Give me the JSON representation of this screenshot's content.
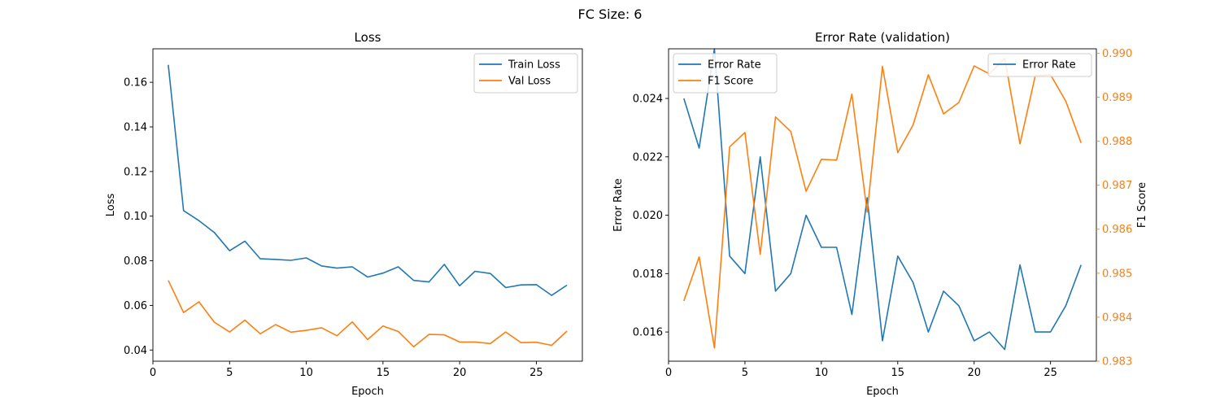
{
  "suptitle": "FC Size: 6",
  "chart_data": [
    {
      "type": "line",
      "title": "Loss",
      "xlabel": "Epoch",
      "ylabel": "Loss",
      "xlim": [
        0,
        28
      ],
      "ylim": [
        0.035,
        0.175
      ],
      "xticks": [
        0,
        5,
        10,
        15,
        20,
        25
      ],
      "yticks": [
        0.04,
        0.06,
        0.08,
        0.1,
        0.12,
        0.14,
        0.16
      ],
      "yticks_decimals": 2,
      "legend": "top-right",
      "grid": false,
      "x": [
        1,
        2,
        3,
        4,
        5,
        6,
        7,
        8,
        9,
        10,
        11,
        12,
        13,
        14,
        15,
        16,
        17,
        18,
        19,
        20,
        21,
        22,
        23,
        24,
        25,
        26,
        27
      ],
      "series": [
        {
          "name": "Train Loss",
          "color": "#1f77b4",
          "values": [
            0.1678,
            0.1025,
            0.098,
            0.0927,
            0.0845,
            0.0888,
            0.0809,
            0.0806,
            0.0802,
            0.0813,
            0.0777,
            0.0767,
            0.0773,
            0.0727,
            0.0745,
            0.0773,
            0.0712,
            0.0705,
            0.0784,
            0.0688,
            0.0753,
            0.0743,
            0.068,
            0.0692,
            0.0693,
            0.0645,
            0.0691
          ]
        },
        {
          "name": "Val Loss",
          "color": "#ff7f0e",
          "values": [
            0.0712,
            0.0568,
            0.0616,
            0.0525,
            0.0481,
            0.0534,
            0.0473,
            0.0514,
            0.048,
            0.0488,
            0.05,
            0.0464,
            0.0526,
            0.0447,
            0.0508,
            0.0483,
            0.0415,
            0.047,
            0.0468,
            0.0436,
            0.0436,
            0.0429,
            0.0481,
            0.0433,
            0.0435,
            0.0421,
            0.0485
          ]
        }
      ]
    },
    {
      "type": "line",
      "title": "Error Rate (validation)",
      "xlabel": "Epoch",
      "ylabel": "Error Rate",
      "ylabel_right": "F1 Score",
      "xlim": [
        0,
        28
      ],
      "ylim": [
        0.015,
        0.0257
      ],
      "ylim_right": [
        0.983,
        0.9901
      ],
      "xticks": [
        0,
        5,
        10,
        15,
        20,
        25
      ],
      "yticks": [
        0.016,
        0.018,
        0.02,
        0.022,
        0.024
      ],
      "yticks_decimals": 3,
      "yticks_right": [
        0.983,
        0.984,
        0.985,
        0.986,
        0.987,
        0.988,
        0.989,
        0.99
      ],
      "yticks_right_decimals": 3,
      "legend": "top-left",
      "legend_right": "top-right",
      "grid": false,
      "x": [
        1,
        2,
        3,
        4,
        5,
        6,
        7,
        8,
        9,
        10,
        11,
        12,
        13,
        14,
        15,
        16,
        17,
        18,
        19,
        20,
        21,
        22,
        23,
        24,
        25,
        26,
        27
      ],
      "series": [
        {
          "name": "Error Rate",
          "axis": "left",
          "color": "#1f77b4",
          "values": [
            0.024,
            0.0223,
            0.0257,
            0.0186,
            0.018,
            0.022,
            0.0174,
            0.018,
            0.02,
            0.0189,
            0.0189,
            0.0166,
            0.0206,
            0.0157,
            0.0186,
            0.0177,
            0.016,
            0.0174,
            0.0169,
            0.0157,
            0.016,
            0.0154,
            0.0183,
            0.016,
            0.016,
            0.0169,
            0.0183
          ]
        },
        {
          "name": "F1 Score",
          "axis": "right",
          "color": "#ff7f0e",
          "values": [
            0.98437,
            0.98537,
            0.9833,
            0.98787,
            0.9882,
            0.98543,
            0.98855,
            0.98822,
            0.98686,
            0.98759,
            0.98757,
            0.98907,
            0.98639,
            0.9897,
            0.98774,
            0.98837,
            0.98951,
            0.98862,
            0.98888,
            0.98971,
            0.98953,
            0.98988,
            0.98794,
            0.98949,
            0.98951,
            0.98891,
            0.98796
          ]
        }
      ],
      "legend_right_entries": [
        "Error Rate"
      ]
    }
  ]
}
